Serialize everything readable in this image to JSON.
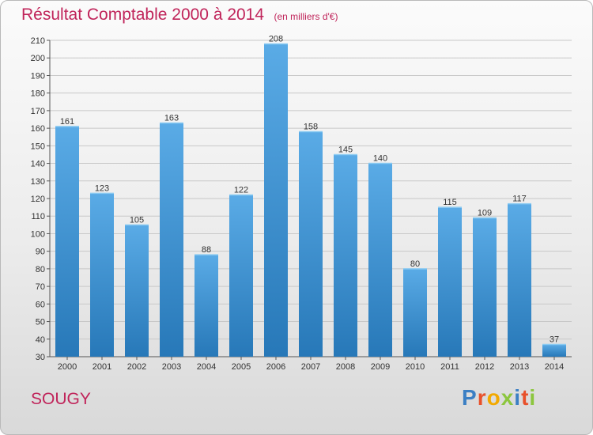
{
  "header": {
    "title": "Résultat Comptable 2000 à 2014",
    "unit": "(en milliers d'€)"
  },
  "commune": "SOUGY",
  "logo": {
    "text": "Proxiti",
    "letter_colors": [
      "#3b7fc4",
      "#e8512b",
      "#f2a900",
      "#8cc63e",
      "#3b7fc4",
      "#e8512b",
      "#8cc63e"
    ]
  },
  "colors": {
    "bar_top": "#5aabe6",
    "bar_bottom": "#2778b8",
    "title": "#c0245a",
    "grid": "#c8c8c8"
  },
  "chart_data": {
    "type": "bar",
    "title": "Résultat Comptable 2000 à 2014",
    "xlabel": "",
    "ylabel": "",
    "categories": [
      "2000",
      "2001",
      "2002",
      "2003",
      "2004",
      "2005",
      "2006",
      "2007",
      "2008",
      "2009",
      "2010",
      "2011",
      "2012",
      "2013",
      "2014"
    ],
    "values": [
      161,
      123,
      105,
      163,
      88,
      122,
      208,
      158,
      145,
      140,
      80,
      115,
      109,
      117,
      37
    ],
    "ylim": [
      30,
      210
    ],
    "yticks": [
      30,
      40,
      50,
      60,
      70,
      80,
      90,
      100,
      110,
      120,
      130,
      140,
      150,
      160,
      170,
      180,
      190,
      200,
      210
    ],
    "grid": true
  }
}
